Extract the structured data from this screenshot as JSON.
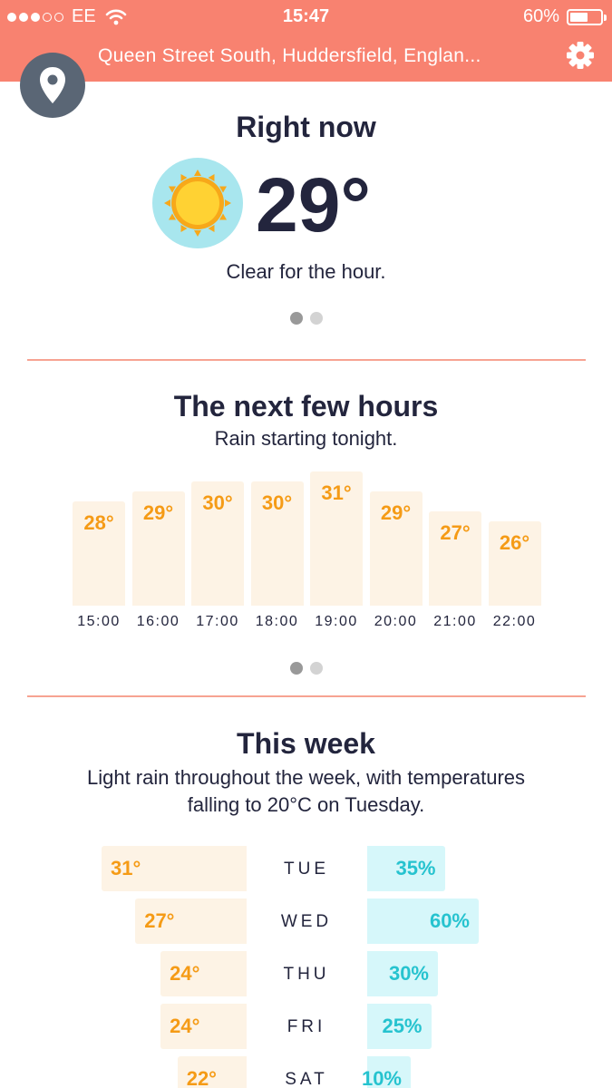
{
  "status_bar": {
    "carrier": "EE",
    "signal_bars": 3,
    "time": "15:47",
    "battery_percent": "60%",
    "battery_level": 0.6
  },
  "header": {
    "location": "Queen Street South, Huddersfield, Englan...",
    "settings_icon": "gear-icon",
    "location_icon": "location-pin-icon"
  },
  "colors": {
    "header": "#f88270",
    "text": "#23253d",
    "temp": "#f59b16",
    "rain": "#26c3cf",
    "temp_bar": "#fdf3e5",
    "rain_bar": "#d6f7fa"
  },
  "right_now": {
    "title": "Right now",
    "temperature": "29°",
    "summary": "Clear for the hour.",
    "icon": "sun-icon"
  },
  "next_hours": {
    "title": "The next few hours",
    "summary": "Rain starting tonight.",
    "hours": [
      {
        "time": "15:00",
        "temp": "28°",
        "value": 28
      },
      {
        "time": "16:00",
        "temp": "29°",
        "value": 29
      },
      {
        "time": "17:00",
        "temp": "30°",
        "value": 30
      },
      {
        "time": "18:00",
        "temp": "30°",
        "value": 30
      },
      {
        "time": "19:00",
        "temp": "31°",
        "value": 31
      },
      {
        "time": "20:00",
        "temp": "29°",
        "value": 29
      },
      {
        "time": "21:00",
        "temp": "27°",
        "value": 27
      },
      {
        "time": "22:00",
        "temp": "26°",
        "value": 26
      }
    ]
  },
  "this_week": {
    "title": "This week",
    "summary_line1": "Light rain throughout the week, with temperatures",
    "summary_line2": "falling to 20°C on Tuesday.",
    "days": [
      {
        "day": "TUE",
        "temp": "31°",
        "temp_value": 31,
        "rain": "35%",
        "rain_value": 35
      },
      {
        "day": "WED",
        "temp": "27°",
        "temp_value": 27,
        "rain": "60%",
        "rain_value": 60
      },
      {
        "day": "THU",
        "temp": "24°",
        "temp_value": 24,
        "rain": "30%",
        "rain_value": 30
      },
      {
        "day": "FRI",
        "temp": "24°",
        "temp_value": 24,
        "rain": "25%",
        "rain_value": 25
      },
      {
        "day": "SAT",
        "temp": "22°",
        "temp_value": 22,
        "rain": "10%",
        "rain_value": 10
      }
    ]
  }
}
